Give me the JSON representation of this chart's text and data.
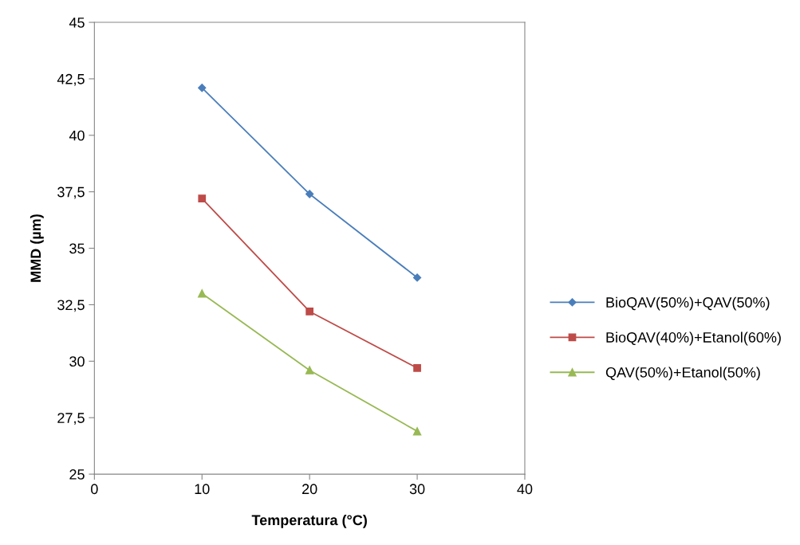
{
  "chart_data": {
    "type": "line",
    "xlabel": "Temperatura (°C)",
    "ylabel": "MMD (µm)",
    "x": [
      10,
      20,
      30
    ],
    "xlim": [
      0,
      40
    ],
    "xticks": [
      0,
      10,
      20,
      30,
      40
    ],
    "ylim": [
      25,
      45
    ],
    "yticks": [
      25,
      {
        "value": 27.5,
        "label": "27,5"
      },
      30,
      {
        "value": 32.5,
        "label": "32,5"
      },
      35,
      {
        "value": 37.5,
        "label": "37,5"
      },
      40,
      {
        "value": 42.5,
        "label": "42,5"
      },
      45
    ],
    "grid": false,
    "legend": "right",
    "line_style": "solid",
    "series": [
      {
        "name": "BioQAV(50%)+QAV(50%)",
        "color": "#4a7ebb",
        "marker": "diamond",
        "values": [
          42.1,
          37.4,
          33.7
        ]
      },
      {
        "name": "BioQAV(40%)+Etanol(60%)",
        "color": "#be4b48",
        "marker": "square",
        "values": [
          37.2,
          32.2,
          29.7
        ]
      },
      {
        "name": "QAV(50%)+Etanol(50%)",
        "color": "#98b954",
        "marker": "triangle",
        "values": [
          33.0,
          29.6,
          26.9
        ]
      }
    ]
  }
}
